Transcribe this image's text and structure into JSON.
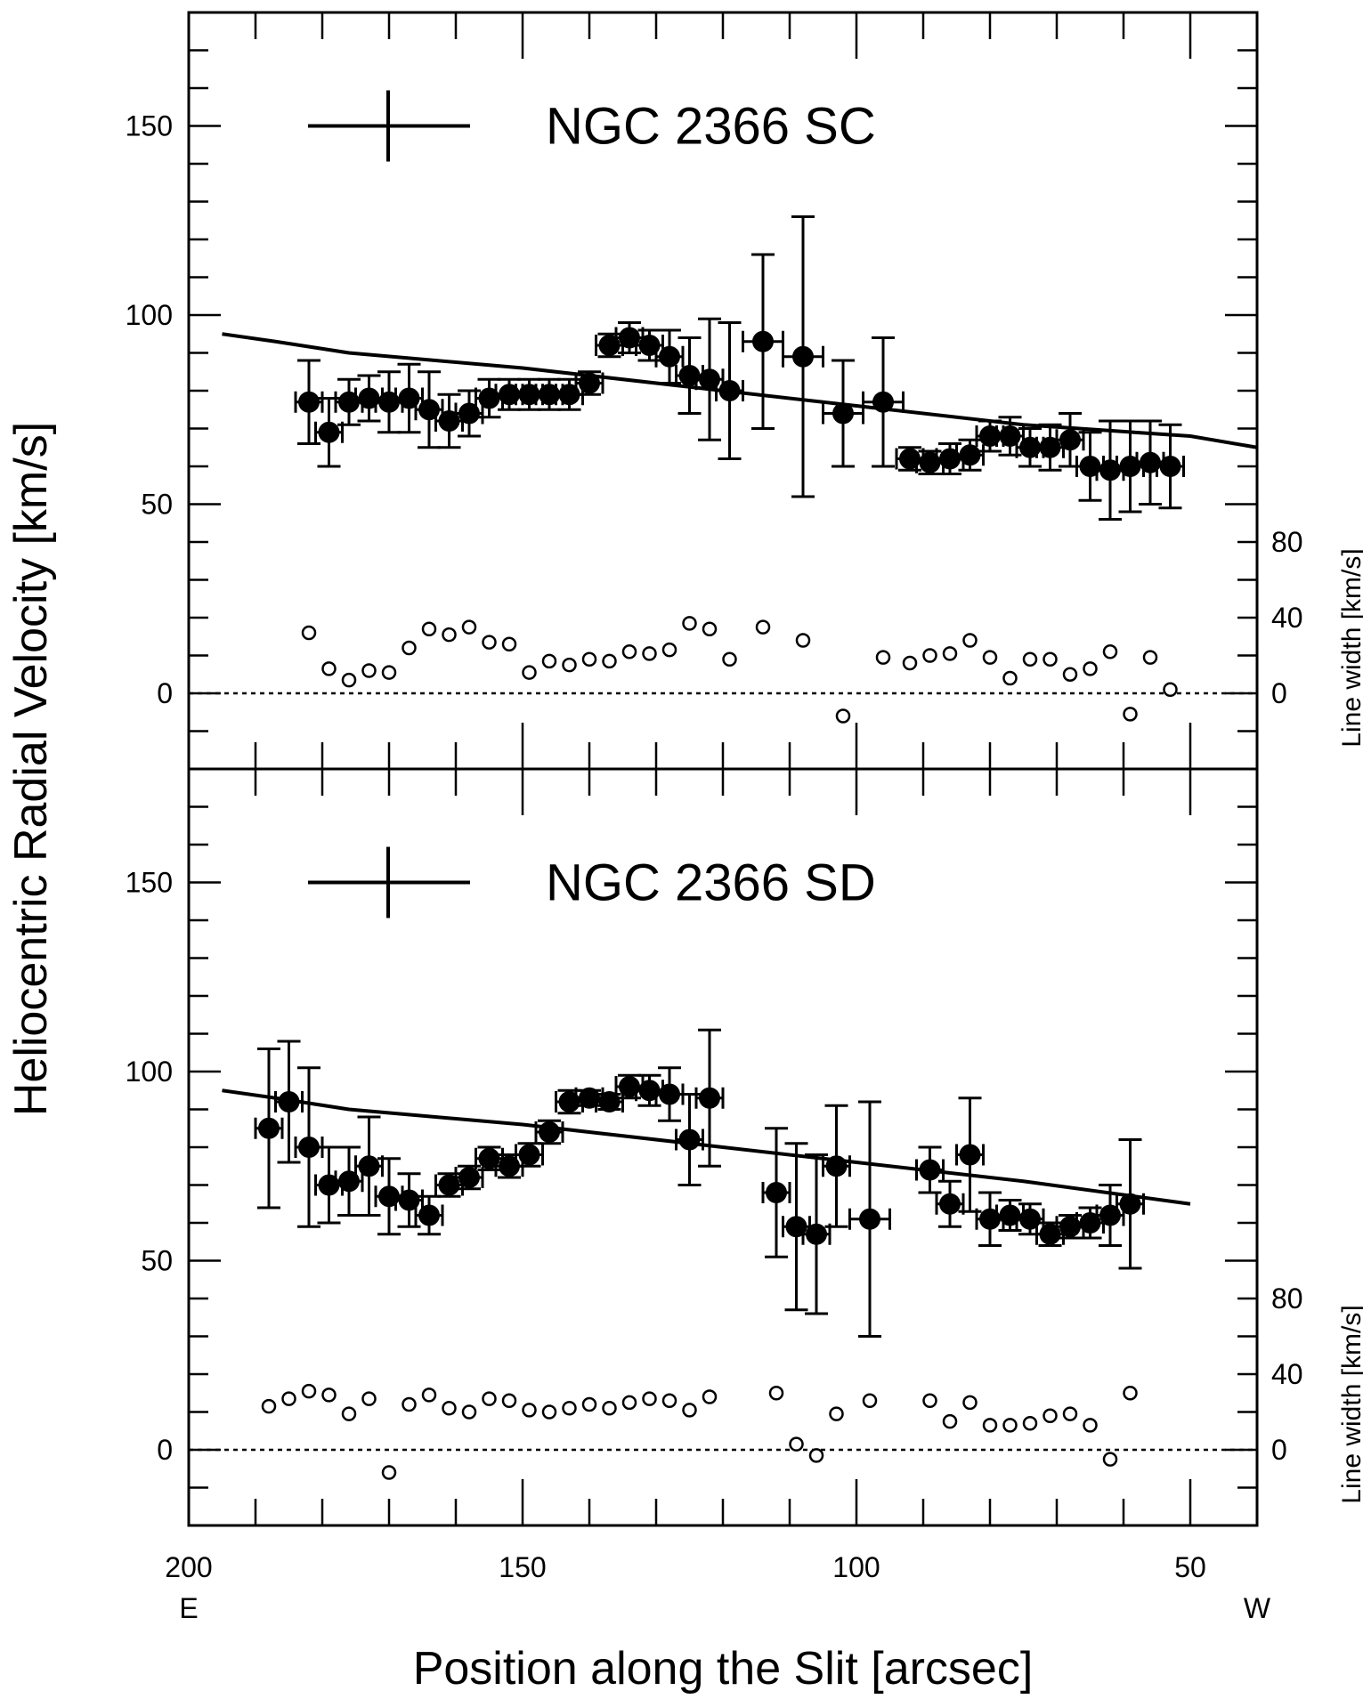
{
  "chart_data": {
    "type": "scatter",
    "xlabel": "Position along the Slit [arcsec]",
    "ylabel": "Heliocentric Radial Velocity [km/s]",
    "ylabel_right": "Line width [km/s]",
    "x_end_labels": {
      "left": "E",
      "right": "W"
    },
    "xlim": [
      200,
      40
    ],
    "xticks": [
      200,
      150,
      100,
      50
    ],
    "ylim": [
      -20,
      180
    ],
    "yticks": [
      0,
      50,
      100,
      150
    ],
    "y2ticks": [
      0,
      40,
      80
    ],
    "grid": false,
    "panels": [
      {
        "name": "NGC 2366 SC",
        "model_curve": {
          "x": [
            195,
            187,
            176,
            150,
            125,
            100,
            75,
            50,
            40
          ],
          "y": [
            95,
            93,
            90,
            86,
            81,
            76,
            71,
            68,
            65
          ]
        },
        "velocity": [
          {
            "x": 182,
            "y": 77,
            "err": 11,
            "xerr": 2
          },
          {
            "x": 179,
            "y": 69,
            "err": 9,
            "xerr": 2
          },
          {
            "x": 176,
            "y": 77,
            "err": 6,
            "xerr": 2
          },
          {
            "x": 173,
            "y": 78,
            "err": 6,
            "xerr": 2
          },
          {
            "x": 170,
            "y": 77,
            "err": 8,
            "xerr": 2
          },
          {
            "x": 167,
            "y": 78,
            "err": 9,
            "xerr": 2
          },
          {
            "x": 164,
            "y": 75,
            "err": 10,
            "xerr": 2
          },
          {
            "x": 161,
            "y": 72,
            "err": 7,
            "xerr": 2
          },
          {
            "x": 158,
            "y": 74,
            "err": 6,
            "xerr": 2
          },
          {
            "x": 155,
            "y": 78,
            "err": 5,
            "xerr": 2
          },
          {
            "x": 152,
            "y": 79,
            "err": 4,
            "xerr": 2
          },
          {
            "x": 149,
            "y": 79,
            "err": 4,
            "xerr": 2
          },
          {
            "x": 146,
            "y": 79,
            "err": 4,
            "xerr": 2
          },
          {
            "x": 143,
            "y": 79,
            "err": 4,
            "xerr": 2
          },
          {
            "x": 140,
            "y": 82,
            "err": 3,
            "xerr": 2
          },
          {
            "x": 137,
            "y": 92,
            "err": 3,
            "xerr": 2
          },
          {
            "x": 134,
            "y": 94,
            "err": 4,
            "xerr": 2
          },
          {
            "x": 131,
            "y": 92,
            "err": 4,
            "xerr": 2
          },
          {
            "x": 128,
            "y": 89,
            "err": 7,
            "xerr": 2
          },
          {
            "x": 125,
            "y": 84,
            "err": 10,
            "xerr": 2
          },
          {
            "x": 122,
            "y": 83,
            "err": 16,
            "xerr": 2
          },
          {
            "x": 119,
            "y": 80,
            "err": 18,
            "xerr": 2
          },
          {
            "x": 114,
            "y": 93,
            "err": 23,
            "xerr": 3
          },
          {
            "x": 108,
            "y": 89,
            "err": 37,
            "xerr": 3
          },
          {
            "x": 102,
            "y": 74,
            "err": 14,
            "xerr": 3
          },
          {
            "x": 96,
            "y": 77,
            "err": 17,
            "xerr": 3
          },
          {
            "x": 92,
            "y": 62,
            "err": 3,
            "xerr": 2
          },
          {
            "x": 89,
            "y": 61,
            "err": 3,
            "xerr": 2
          },
          {
            "x": 86,
            "y": 62,
            "err": 4,
            "xerr": 2
          },
          {
            "x": 83,
            "y": 63,
            "err": 4,
            "xerr": 2
          },
          {
            "x": 80,
            "y": 68,
            "err": 4,
            "xerr": 2
          },
          {
            "x": 77,
            "y": 68,
            "err": 5,
            "xerr": 2
          },
          {
            "x": 74,
            "y": 65,
            "err": 5,
            "xerr": 2
          },
          {
            "x": 71,
            "y": 65,
            "err": 6,
            "xerr": 2
          },
          {
            "x": 68,
            "y": 67,
            "err": 7,
            "xerr": 2
          },
          {
            "x": 65,
            "y": 60,
            "err": 9,
            "xerr": 2
          },
          {
            "x": 62,
            "y": 59,
            "err": 13,
            "xerr": 2
          },
          {
            "x": 59,
            "y": 60,
            "err": 12,
            "xerr": 2
          },
          {
            "x": 56,
            "y": 61,
            "err": 11,
            "xerr": 2
          },
          {
            "x": 53,
            "y": 60,
            "err": 11,
            "xerr": 2
          }
        ],
        "line_width": [
          {
            "x": 182,
            "y": 32
          },
          {
            "x": 179,
            "y": 13
          },
          {
            "x": 176,
            "y": 7
          },
          {
            "x": 173,
            "y": 12
          },
          {
            "x": 170,
            "y": 11
          },
          {
            "x": 167,
            "y": 24
          },
          {
            "x": 164,
            "y": 34
          },
          {
            "x": 161,
            "y": 31
          },
          {
            "x": 158,
            "y": 35
          },
          {
            "x": 155,
            "y": 27
          },
          {
            "x": 152,
            "y": 26
          },
          {
            "x": 149,
            "y": 11
          },
          {
            "x": 146,
            "y": 17
          },
          {
            "x": 143,
            "y": 15
          },
          {
            "x": 140,
            "y": 18
          },
          {
            "x": 137,
            "y": 17
          },
          {
            "x": 134,
            "y": 22
          },
          {
            "x": 131,
            "y": 21
          },
          {
            "x": 128,
            "y": 23
          },
          {
            "x": 125,
            "y": 37
          },
          {
            "x": 122,
            "y": 34
          },
          {
            "x": 119,
            "y": 18
          },
          {
            "x": 114,
            "y": 35
          },
          {
            "x": 108,
            "y": 28
          },
          {
            "x": 102,
            "y": -12
          },
          {
            "x": 96,
            "y": 19
          },
          {
            "x": 92,
            "y": 16
          },
          {
            "x": 89,
            "y": 20
          },
          {
            "x": 86,
            "y": 21
          },
          {
            "x": 83,
            "y": 28
          },
          {
            "x": 80,
            "y": 19
          },
          {
            "x": 77,
            "y": 8
          },
          {
            "x": 74,
            "y": 18
          },
          {
            "x": 71,
            "y": 18
          },
          {
            "x": 68,
            "y": 10
          },
          {
            "x": 65,
            "y": 13
          },
          {
            "x": 62,
            "y": 22
          },
          {
            "x": 59,
            "y": -11
          },
          {
            "x": 56,
            "y": 19
          },
          {
            "x": 53,
            "y": 2
          }
        ]
      },
      {
        "name": "NGC 2366 SD",
        "model_curve": {
          "x": [
            195,
            187,
            176,
            150,
            125,
            100,
            75,
            50
          ],
          "y": [
            95,
            93,
            90,
            86,
            81,
            76,
            71,
            65
          ]
        },
        "velocity": [
          {
            "x": 188,
            "y": 85,
            "err": 21,
            "xerr": 2
          },
          {
            "x": 185,
            "y": 92,
            "err": 16,
            "xerr": 2
          },
          {
            "x": 182,
            "y": 80,
            "err": 21,
            "xerr": 2
          },
          {
            "x": 179,
            "y": 70,
            "err": 10,
            "xerr": 2
          },
          {
            "x": 176,
            "y": 71,
            "err": 9,
            "xerr": 2
          },
          {
            "x": 173,
            "y": 75,
            "err": 13,
            "xerr": 2
          },
          {
            "x": 170,
            "y": 67,
            "err": 10,
            "xerr": 2
          },
          {
            "x": 167,
            "y": 66,
            "err": 7,
            "xerr": 2
          },
          {
            "x": 164,
            "y": 62,
            "err": 5,
            "xerr": 2
          },
          {
            "x": 161,
            "y": 70,
            "err": 3,
            "xerr": 2
          },
          {
            "x": 158,
            "y": 72,
            "err": 3,
            "xerr": 2
          },
          {
            "x": 155,
            "y": 77,
            "err": 3,
            "xerr": 2
          },
          {
            "x": 152,
            "y": 75,
            "err": 3,
            "xerr": 2
          },
          {
            "x": 149,
            "y": 78,
            "err": 3,
            "xerr": 2
          },
          {
            "x": 146,
            "y": 84,
            "err": 3,
            "xerr": 2
          },
          {
            "x": 143,
            "y": 92,
            "err": 3,
            "xerr": 2
          },
          {
            "x": 140,
            "y": 93,
            "err": 2,
            "xerr": 2
          },
          {
            "x": 137,
            "y": 92,
            "err": 2,
            "xerr": 2
          },
          {
            "x": 134,
            "y": 96,
            "err": 3,
            "xerr": 2
          },
          {
            "x": 131,
            "y": 95,
            "err": 4,
            "xerr": 2
          },
          {
            "x": 128,
            "y": 94,
            "err": 7,
            "xerr": 2
          },
          {
            "x": 125,
            "y": 82,
            "err": 12,
            "xerr": 2
          },
          {
            "x": 122,
            "y": 93,
            "err": 18,
            "xerr": 2
          },
          {
            "x": 112,
            "y": 68,
            "err": 17,
            "xerr": 2
          },
          {
            "x": 109,
            "y": 59,
            "err": 22,
            "xerr": 2
          },
          {
            "x": 106,
            "y": 57,
            "err": 21,
            "xerr": 2
          },
          {
            "x": 103,
            "y": 75,
            "err": 16,
            "xerr": 2
          },
          {
            "x": 98,
            "y": 61,
            "err": 31,
            "xerr": 3
          },
          {
            "x": 89,
            "y": 74,
            "err": 6,
            "xerr": 2
          },
          {
            "x": 86,
            "y": 65,
            "err": 6,
            "xerr": 2
          },
          {
            "x": 83,
            "y": 78,
            "err": 15,
            "xerr": 2
          },
          {
            "x": 80,
            "y": 61,
            "err": 7,
            "xerr": 2
          },
          {
            "x": 77,
            "y": 62,
            "err": 4,
            "xerr": 2
          },
          {
            "x": 74,
            "y": 61,
            "err": 4,
            "xerr": 2
          },
          {
            "x": 71,
            "y": 57,
            "err": 3,
            "xerr": 2
          },
          {
            "x": 68,
            "y": 59,
            "err": 3,
            "xerr": 2
          },
          {
            "x": 65,
            "y": 60,
            "err": 4,
            "xerr": 2
          },
          {
            "x": 62,
            "y": 62,
            "err": 8,
            "xerr": 2
          },
          {
            "x": 59,
            "y": 65,
            "err": 17,
            "xerr": 2
          }
        ],
        "line_width": [
          {
            "x": 188,
            "y": 23
          },
          {
            "x": 185,
            "y": 27
          },
          {
            "x": 182,
            "y": 31
          },
          {
            "x": 179,
            "y": 29
          },
          {
            "x": 176,
            "y": 19
          },
          {
            "x": 173,
            "y": 27
          },
          {
            "x": 170,
            "y": -12
          },
          {
            "x": 167,
            "y": 24
          },
          {
            "x": 164,
            "y": 29
          },
          {
            "x": 161,
            "y": 22
          },
          {
            "x": 158,
            "y": 20
          },
          {
            "x": 155,
            "y": 27
          },
          {
            "x": 152,
            "y": 26
          },
          {
            "x": 149,
            "y": 21
          },
          {
            "x": 146,
            "y": 20
          },
          {
            "x": 143,
            "y": 22
          },
          {
            "x": 140,
            "y": 24
          },
          {
            "x": 137,
            "y": 22
          },
          {
            "x": 134,
            "y": 25
          },
          {
            "x": 131,
            "y": 27
          },
          {
            "x": 128,
            "y": 26
          },
          {
            "x": 125,
            "y": 21
          },
          {
            "x": 122,
            "y": 28
          },
          {
            "x": 112,
            "y": 30
          },
          {
            "x": 109,
            "y": 3
          },
          {
            "x": 106,
            "y": -3
          },
          {
            "x": 103,
            "y": 19
          },
          {
            "x": 98,
            "y": 26
          },
          {
            "x": 89,
            "y": 26
          },
          {
            "x": 86,
            "y": 15
          },
          {
            "x": 83,
            "y": 25
          },
          {
            "x": 80,
            "y": 13
          },
          {
            "x": 77,
            "y": 13
          },
          {
            "x": 74,
            "y": 14
          },
          {
            "x": 71,
            "y": 18
          },
          {
            "x": 68,
            "y": 19
          },
          {
            "x": 65,
            "y": 13
          },
          {
            "x": 62,
            "y": -5
          },
          {
            "x": 59,
            "y": 30
          }
        ]
      }
    ]
  }
}
